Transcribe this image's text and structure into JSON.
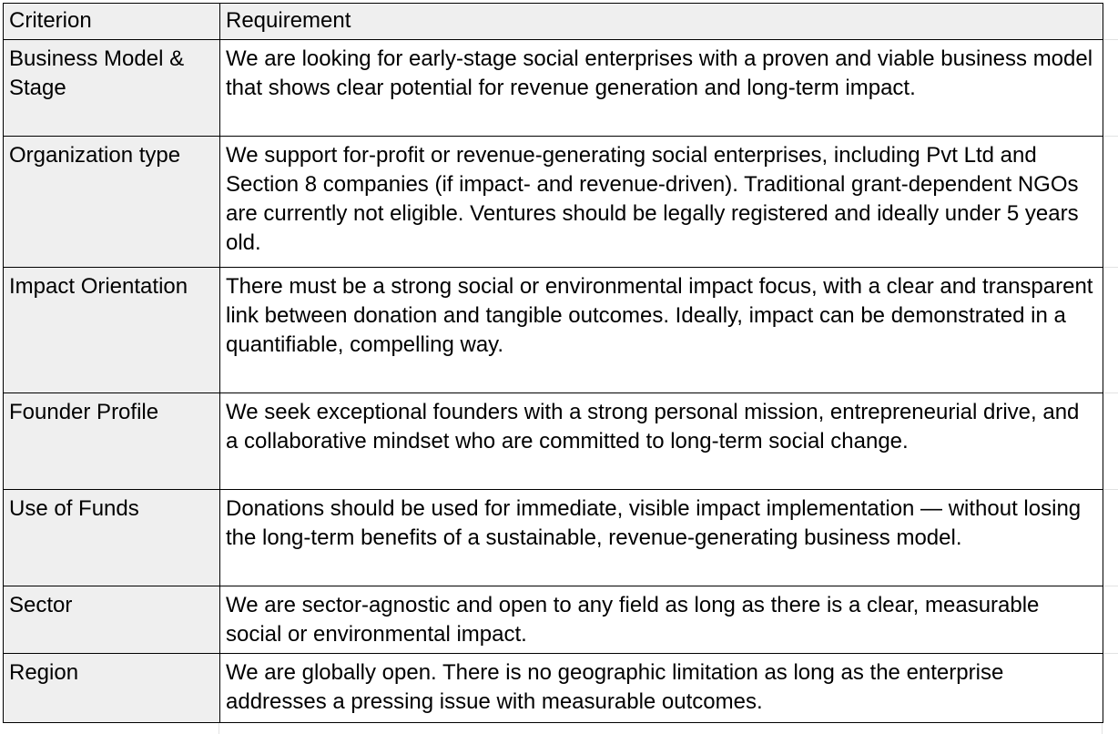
{
  "table": {
    "headers": [
      "Criterion",
      "Requirement"
    ],
    "rows": [
      {
        "criterion": "Business Model & Stage",
        "requirement": "We are looking for early-stage social enterprises with a proven and viable business model that shows clear potential for revenue generation and long-term impact."
      },
      {
        "criterion": "Organization type",
        "requirement": "We support for-profit or revenue-generating social enterprises, including Pvt Ltd and Section 8 companies (if impact- and revenue-driven). Traditional grant-dependent NGOs are currently not eligible. Ventures should be legally registered and ideally under 5 years old."
      },
      {
        "criterion": "Impact Orientation",
        "requirement": "There must be a strong social or environmental impact focus, with a clear and transparent link between donation and tangible outcomes. Ideally, impact can be demonstrated in a quantifiable, compelling way."
      },
      {
        "criterion": "Founder Profile",
        "requirement": "We seek exceptional founders with a strong personal mission, entrepreneurial drive, and a collaborative mindset who are committed to long-term social change."
      },
      {
        "criterion": "Use of Funds",
        "requirement": "Donations should be used for immediate, visible impact implementation — without losing the long-term benefits of a sustainable, revenue-generating business model."
      },
      {
        "criterion": "Sector",
        "requirement": "We are sector-agnostic and open to any field as long as there is a clear, measurable social or environmental impact."
      },
      {
        "criterion": "Region",
        "requirement": "We are globally open. There is no geographic limitation as long as the enterprise addresses a pressing issue with measurable outcomes."
      }
    ]
  }
}
